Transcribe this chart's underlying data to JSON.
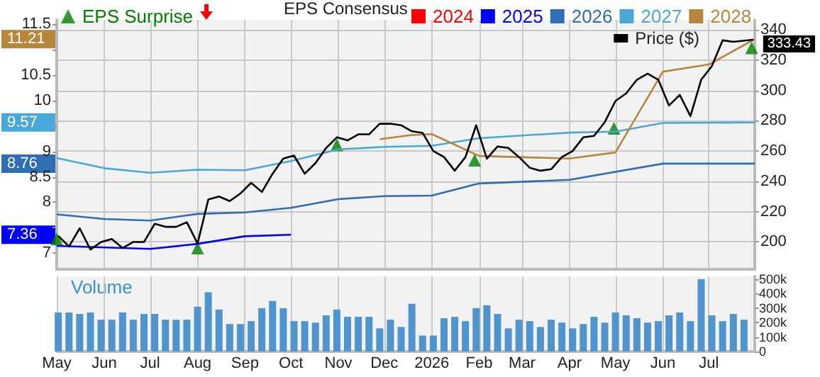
{
  "chart_data": [
    {
      "type": "line",
      "legend_title": "EPS Consensus",
      "legend": "top",
      "grid": true,
      "tick_labels": "y",
      "line_style": "solid",
      "xlim": [
        "2025-05-01",
        "2026-07-31"
      ],
      "xticks": [
        {
          "value": "2025-05-01",
          "label": null
        },
        {
          "value": "2025-06-01",
          "label": null
        },
        {
          "value": "2025-07-01",
          "label": null
        },
        {
          "value": "2025-08-01",
          "label": null
        },
        {
          "value": "2025-09-01",
          "label": null
        },
        {
          "value": "2025-10-01",
          "label": null
        },
        {
          "value": "2025-11-01",
          "label": null
        },
        {
          "value": "2025-12-01",
          "label": null
        },
        {
          "value": "2026-01-01",
          "label": null
        },
        {
          "value": "2026-02-01",
          "label": null
        },
        {
          "value": "2026-03-01",
          "label": null
        },
        {
          "value": "2026-04-01",
          "label": null
        },
        {
          "value": "2026-05-01",
          "label": null
        },
        {
          "value": "2026-06-01",
          "label": null
        },
        {
          "value": "2026-07-01",
          "label": null
        }
      ],
      "ylim": [
        6.68,
        11.59
      ],
      "yticks": [
        7,
        {
          "value": 7.5,
          "label": null
        },
        8,
        8.5,
        9,
        {
          "value": 9.5,
          "label": null
        },
        10,
        10.5,
        {
          "value": 11,
          "label": null
        },
        11.5
      ],
      "y2lim": [
        182,
        346.5
      ],
      "y2ticks": [
        200,
        220,
        240,
        260,
        280,
        300,
        320,
        340
      ],
      "annotations": [
        "11.21",
        "9.57",
        "8.76",
        "7.36"
      ],
      "series": [
        {
          "name": "EPS Surprise",
          "type": "scatter",
          "axis": "y2",
          "marker": "triangle",
          "color": "#008000",
          "x": [
            "2025-05-01",
            "2025-08-01",
            "2025-10-31",
            "2026-01-29",
            "2026-04-30",
            "2026-07-29"
          ],
          "values": [
            202,
            196,
            264,
            254,
            275,
            328
          ]
        },
        {
          "name": "2024",
          "color": "#ff0000"
        },
        {
          "name": "2025",
          "color": "#0000ff",
          "x": [
            "2025-05-01",
            "2025-07-01",
            "2025-08-01",
            "2025-09-01",
            "2025-10-01"
          ],
          "values": [
            7.14,
            7.08,
            7.18,
            7.33,
            7.36
          ]
        },
        {
          "name": "2026",
          "color": "#2f6db5",
          "x": [
            "2025-05-01",
            "2025-06-01",
            "2025-07-01",
            "2025-08-01",
            "2025-09-01",
            "2025-10-01",
            "2025-11-01",
            "2025-12-01",
            "2026-01-01",
            "2026-02-01",
            "2026-04-01",
            "2026-06-01",
            "2026-07-31"
          ],
          "values": [
            7.76,
            7.67,
            7.64,
            7.77,
            7.8,
            7.89,
            8.06,
            8.12,
            8.13,
            8.37,
            8.44,
            8.76,
            8.76
          ]
        },
        {
          "name": "2027",
          "color": "#4aa8d8",
          "x": [
            "2025-05-01",
            "2025-06-01",
            "2025-07-01",
            "2025-08-01",
            "2025-09-01",
            "2025-10-01",
            "2025-11-01",
            "2025-12-01",
            "2026-01-01",
            "2026-02-01",
            "2026-04-01",
            "2026-05-01",
            "2026-06-01",
            "2026-07-31"
          ],
          "values": [
            8.87,
            8.67,
            8.58,
            8.64,
            8.63,
            8.81,
            9.04,
            9.09,
            9.11,
            9.26,
            9.37,
            9.39,
            9.56,
            9.57
          ]
        },
        {
          "name": "2028",
          "color": "#b8863b",
          "x": [
            "2025-11-28",
            "2025-12-18",
            "2026-01-01",
            "2026-02-01",
            "2026-04-01",
            "2026-05-01",
            "2026-06-01",
            "2026-07-01",
            "2026-07-31"
          ],
          "values": [
            9.24,
            9.32,
            9.34,
            8.91,
            8.86,
            8.98,
            10.57,
            10.71,
            11.21
          ]
        },
        {
          "name": "Price ($)",
          "color": "#000000",
          "axis": "y2",
          "x": [
            "2025-05-02",
            "2025-05-09",
            "2025-05-16",
            "2025-05-23",
            "2025-05-30",
            "2025-06-06",
            "2025-06-13",
            "2025-06-20",
            "2025-06-27",
            "2025-07-04",
            "2025-07-11",
            "2025-07-18",
            "2025-07-25",
            "2025-08-01",
            "2025-08-08",
            "2025-08-15",
            "2025-08-22",
            "2025-08-29",
            "2025-09-05",
            "2025-09-12",
            "2025-09-19",
            "2025-09-26",
            "2025-10-03",
            "2025-10-10",
            "2025-10-17",
            "2025-10-24",
            "2025-10-31",
            "2025-11-07",
            "2025-11-14",
            "2025-11-21",
            "2025-11-28",
            "2025-12-05",
            "2025-12-12",
            "2025-12-19",
            "2025-12-26",
            "2026-01-02",
            "2026-01-09",
            "2026-01-16",
            "2026-01-23",
            "2026-01-30",
            "2026-02-06",
            "2026-02-13",
            "2026-02-20",
            "2026-02-27",
            "2026-03-06",
            "2026-03-13",
            "2026-03-20",
            "2026-03-27",
            "2026-04-03",
            "2026-04-10",
            "2026-04-17",
            "2026-04-24",
            "2026-05-01",
            "2026-05-08",
            "2026-05-15",
            "2026-05-22",
            "2026-05-29",
            "2026-06-05",
            "2026-06-12",
            "2026-06-19",
            "2026-06-26",
            "2026-07-03",
            "2026-07-10",
            "2026-07-17",
            "2026-07-30"
          ],
          "values": [
            204,
            197,
            209,
            195,
            200,
            202,
            196,
            200,
            200,
            212,
            210,
            210,
            213,
            199,
            228,
            230,
            227,
            232,
            239,
            233,
            245,
            255,
            257,
            245,
            252,
            262,
            269,
            267,
            271,
            271,
            278,
            278,
            277,
            273,
            272,
            260,
            256,
            247,
            256,
            277,
            255,
            263,
            262,
            256,
            249,
            247,
            248,
            256,
            260,
            269,
            270,
            279,
            293,
            298,
            307,
            311,
            307,
            290,
            297,
            283,
            307,
            316,
            333,
            332,
            333.43
          ],
          "value_labels": [
            null,
            null,
            null,
            null,
            null,
            null,
            null,
            null,
            null,
            null,
            null,
            null,
            null,
            null,
            null,
            null,
            null,
            null,
            null,
            null,
            null,
            null,
            null,
            null,
            null,
            null,
            null,
            null,
            null,
            null,
            null,
            null,
            null,
            null,
            null,
            null,
            null,
            null,
            null,
            null,
            null,
            null,
            null,
            null,
            null,
            null,
            null,
            null,
            null,
            null,
            null,
            null,
            null,
            null,
            null,
            null,
            null,
            null,
            null,
            null,
            null,
            null,
            null,
            null,
            "333.43"
          ]
        }
      ]
    },
    {
      "type": "bar",
      "ylabel": "Volume",
      "grid": "x",
      "color": "#4f93cf",
      "xlim": [
        "2025-05-01",
        "2026-07-31"
      ],
      "xticks": [
        {
          "value": "2025-05-01",
          "label": "May"
        },
        {
          "value": "2025-06-01",
          "label": "Jun"
        },
        {
          "value": "2025-07-01",
          "label": "Jul"
        },
        {
          "value": "2025-08-01",
          "label": "Aug"
        },
        {
          "value": "2025-09-01",
          "label": "Sep"
        },
        {
          "value": "2025-10-01",
          "label": "Oct"
        },
        {
          "value": "2025-11-01",
          "label": "Nov"
        },
        {
          "value": "2025-12-01",
          "label": "Dec"
        },
        {
          "value": "2026-01-01",
          "label": "2026"
        },
        {
          "value": "2026-02-01",
          "label": "Feb"
        },
        {
          "value": "2026-03-01",
          "label": "Mar"
        },
        {
          "value": "2026-04-01",
          "label": "Apr"
        },
        {
          "value": "2026-05-01",
          "label": "May"
        },
        {
          "value": "2026-06-01",
          "label": "Jun"
        },
        {
          "value": "2026-07-01",
          "label": "Jul"
        }
      ],
      "ylim": [
        0,
        520000
      ],
      "yticks": [
        0,
        {
          "value": 100000,
          "label": "100k"
        },
        {
          "value": 200000,
          "label": "200k"
        },
        {
          "value": 300000,
          "label": "300k"
        },
        {
          "value": 400000,
          "label": "400k"
        },
        {
          "value": 500000,
          "label": "500k"
        }
      ],
      "x": [
        "2025-05-02",
        "2025-05-09",
        "2025-05-16",
        "2025-05-23",
        "2025-05-30",
        "2025-06-06",
        "2025-06-13",
        "2025-06-20",
        "2025-06-27",
        "2025-07-04",
        "2025-07-11",
        "2025-07-18",
        "2025-07-25",
        "2025-08-01",
        "2025-08-08",
        "2025-08-15",
        "2025-08-22",
        "2025-08-29",
        "2025-09-05",
        "2025-09-12",
        "2025-09-19",
        "2025-09-26",
        "2025-10-03",
        "2025-10-10",
        "2025-10-17",
        "2025-10-24",
        "2025-10-31",
        "2025-11-07",
        "2025-11-14",
        "2025-11-21",
        "2025-11-28",
        "2025-12-05",
        "2025-12-12",
        "2025-12-19",
        "2025-12-26",
        "2026-01-02",
        "2026-01-09",
        "2026-01-16",
        "2026-01-23",
        "2026-01-30",
        "2026-02-06",
        "2026-02-13",
        "2026-02-20",
        "2026-02-27",
        "2026-03-06",
        "2026-03-13",
        "2026-03-20",
        "2026-03-27",
        "2026-04-03",
        "2026-04-10",
        "2026-04-17",
        "2026-04-24",
        "2026-05-01",
        "2026-05-08",
        "2026-05-15",
        "2026-05-22",
        "2026-05-29",
        "2026-06-05",
        "2026-06-12",
        "2026-06-19",
        "2026-06-26",
        "2026-07-03",
        "2026-07-10",
        "2026-07-17",
        "2026-07-24"
      ],
      "values": [
        270000,
        270000,
        260000,
        270000,
        220000,
        220000,
        270000,
        220000,
        260000,
        260000,
        220000,
        220000,
        220000,
        310000,
        410000,
        290000,
        190000,
        190000,
        210000,
        300000,
        350000,
        300000,
        210000,
        210000,
        200000,
        250000,
        290000,
        240000,
        240000,
        240000,
        160000,
        220000,
        170000,
        330000,
        110000,
        110000,
        230000,
        240000,
        210000,
        300000,
        320000,
        260000,
        160000,
        220000,
        210000,
        170000,
        220000,
        200000,
        160000,
        190000,
        240000,
        200000,
        270000,
        250000,
        230000,
        200000,
        210000,
        250000,
        270000,
        210000,
        500000,
        250000,
        210000,
        260000,
        220000
      ]
    }
  ]
}
